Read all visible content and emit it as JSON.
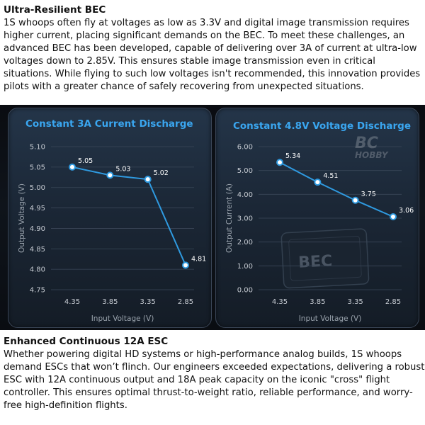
{
  "section1": {
    "title": "Ultra-Resilient BEC",
    "body": "1S whoops often fly at voltages as low as 3.3V and digital image transmission requires higher current, placing significant demands on the BEC. To meet these challenges, an advanced BEC has been developed, capable of delivering over 3A of current at ultra-low voltages down to 2.85V. This ensures stable image transmission even in critical situations. While flying to such low voltages isn't recommended, this innovation provides pilots with a greater chance of safely recovering from unexpected situations."
  },
  "section2": {
    "title": "Enhanced Continuous 12A ESC",
    "body": "Whether powering digital HD systems or high-performance analog builds, 1S whoops demand ESCs that won’t flinch. Our engineers exceeded expectations, delivering a robust ESC with 12A continuous output and 18A peak capacity on the iconic \"cross\" flight controller. This ensures optimal thrust-to-weight ratio, reliable performance, and worry-free high-definition flights."
  },
  "watermark": {
    "line1": "BC",
    "line2": "HOBBY"
  },
  "board_marking": "BEC",
  "chart_data": [
    {
      "type": "line",
      "title": "Constant 3A Current Discharge",
      "xlabel": "Input Voltage (V)",
      "ylabel": "Output Voltage (V)",
      "categories": [
        "4.35",
        "3.85",
        "3.35",
        "2.85"
      ],
      "values": [
        5.05,
        5.03,
        5.02,
        4.81
      ],
      "data_labels": [
        "5.05",
        "5.03",
        "5.02",
        "4.81"
      ],
      "yticks": [
        "5.10",
        "5.05",
        "5.00",
        "4.95",
        "4.90",
        "4.85",
        "4.80",
        "4.75"
      ],
      "ylim": [
        4.75,
        5.1
      ],
      "grid": true,
      "color": "#2f9ae0"
    },
    {
      "type": "line",
      "title": "Constant 4.8V Voltage Discharge",
      "xlabel": "Input Voltage (V)",
      "ylabel": "Output Current (A)",
      "categories": [
        "4.35",
        "3.85",
        "3.35",
        "2.85"
      ],
      "values": [
        5.34,
        4.51,
        3.75,
        3.06
      ],
      "data_labels": [
        "5.34",
        "4.51",
        "3.75",
        "3.06"
      ],
      "yticks": [
        "6.00",
        "5.00",
        "4.00",
        "3.00",
        "2.00",
        "1.00",
        "0.00"
      ],
      "ylim": [
        0,
        6
      ],
      "grid": true,
      "color": "#2f9ae0"
    }
  ]
}
